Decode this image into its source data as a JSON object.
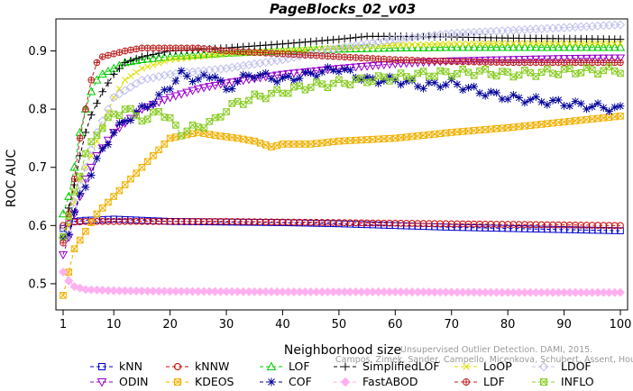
{
  "chart_data": {
    "type": "line",
    "title": "PageBlocks_02_v03",
    "xlabel": "Neighborhood size",
    "ylabel": "ROC AUC",
    "xlim": [
      1,
      100
    ],
    "ylim": [
      0.455,
      0.955
    ],
    "xticks": [
      1,
      10,
      20,
      30,
      40,
      50,
      60,
      70,
      80,
      90,
      100
    ],
    "yticks": [
      0.5,
      0.6,
      0.7,
      0.8,
      0.9
    ],
    "ytick_labels": [
      "0.5",
      "0.6",
      "0.7",
      "0.8",
      "0.9"
    ],
    "grid": false,
    "legend_position": "bottom",
    "watermark": [
      "Unsupervised Outlier Detection. DAMI, 2015.",
      "Campos, Zimek, Sander, Campello, Micenkova, Schubert, Assent, Houle"
    ],
    "series": [
      {
        "name": "kNN",
        "color": "#0000cc",
        "marker": "square",
        "dash": "4,3",
        "points": [
          [
            1,
            0.595
          ],
          [
            2,
            0.603
          ],
          [
            3,
            0.607
          ],
          [
            5,
            0.609
          ],
          [
            8,
            0.61
          ],
          [
            10,
            0.611
          ],
          [
            15,
            0.609
          ],
          [
            20,
            0.607
          ],
          [
            30,
            0.606
          ],
          [
            40,
            0.605
          ],
          [
            50,
            0.603
          ],
          [
            60,
            0.6
          ],
          [
            70,
            0.597
          ],
          [
            80,
            0.595
          ],
          [
            90,
            0.593
          ],
          [
            100,
            0.591
          ]
        ]
      },
      {
        "name": "kNNW",
        "color": "#cc0000",
        "marker": "circle",
        "dash": "4,3",
        "points": [
          [
            1,
            0.6
          ],
          [
            2,
            0.604
          ],
          [
            3,
            0.606
          ],
          [
            5,
            0.607
          ],
          [
            10,
            0.607
          ],
          [
            20,
            0.607
          ],
          [
            30,
            0.607
          ],
          [
            40,
            0.606
          ],
          [
            50,
            0.605
          ],
          [
            60,
            0.604
          ],
          [
            70,
            0.603
          ],
          [
            80,
            0.602
          ],
          [
            90,
            0.601
          ],
          [
            100,
            0.6
          ]
        ]
      },
      {
        "name": "LOF",
        "color": "#00cc00",
        "marker": "triangle",
        "dash": "4,3",
        "points": [
          [
            1,
            0.62
          ],
          [
            2,
            0.65
          ],
          [
            3,
            0.7
          ],
          [
            4,
            0.76
          ],
          [
            5,
            0.8
          ],
          [
            6,
            0.83
          ],
          [
            7,
            0.85
          ],
          [
            8,
            0.86
          ],
          [
            10,
            0.87
          ],
          [
            12,
            0.88
          ],
          [
            15,
            0.885
          ],
          [
            20,
            0.89
          ],
          [
            25,
            0.893
          ],
          [
            30,
            0.896
          ],
          [
            40,
            0.9
          ],
          [
            50,
            0.903
          ],
          [
            60,
            0.905
          ],
          [
            70,
            0.906
          ],
          [
            80,
            0.906
          ],
          [
            90,
            0.906
          ],
          [
            100,
            0.906
          ]
        ]
      },
      {
        "name": "SimplifiedLOF",
        "color": "#000000",
        "marker": "plus",
        "dash": "4,3",
        "points": [
          [
            1,
            0.58
          ],
          [
            2,
            0.63
          ],
          [
            3,
            0.67
          ],
          [
            4,
            0.72
          ],
          [
            5,
            0.76
          ],
          [
            6,
            0.79
          ],
          [
            8,
            0.83
          ],
          [
            10,
            0.86
          ],
          [
            12,
            0.88
          ],
          [
            15,
            0.89
          ],
          [
            20,
            0.9
          ],
          [
            30,
            0.905
          ],
          [
            40,
            0.912
          ],
          [
            50,
            0.92
          ],
          [
            55,
            0.925
          ],
          [
            60,
            0.925
          ],
          [
            70,
            0.924
          ],
          [
            80,
            0.922
          ],
          [
            90,
            0.921
          ],
          [
            100,
            0.92
          ]
        ]
      },
      {
        "name": "LoOP",
        "color": "#dddd00",
        "marker": "x",
        "dash": "4,3",
        "points": [
          [
            1,
            0.58
          ],
          [
            2,
            0.6
          ],
          [
            3,
            0.64
          ],
          [
            4,
            0.68
          ],
          [
            6,
            0.72
          ],
          [
            8,
            0.77
          ],
          [
            10,
            0.82
          ],
          [
            12,
            0.85
          ],
          [
            15,
            0.87
          ],
          [
            20,
            0.885
          ],
          [
            25,
            0.89
          ],
          [
            30,
            0.895
          ],
          [
            40,
            0.9
          ],
          [
            50,
            0.905
          ],
          [
            60,
            0.91
          ],
          [
            70,
            0.912
          ],
          [
            80,
            0.913
          ],
          [
            90,
            0.913
          ],
          [
            100,
            0.913
          ]
        ]
      },
      {
        "name": "LDOF",
        "color": "#c0c0ee",
        "marker": "diamond",
        "dash": "4,3",
        "points": [
          [
            1,
            0.59
          ],
          [
            2,
            0.61
          ],
          [
            3,
            0.64
          ],
          [
            5,
            0.7
          ],
          [
            7,
            0.76
          ],
          [
            10,
            0.82
          ],
          [
            15,
            0.85
          ],
          [
            20,
            0.86
          ],
          [
            30,
            0.87
          ],
          [
            40,
            0.885
          ],
          [
            50,
            0.905
          ],
          [
            60,
            0.92
          ],
          [
            70,
            0.93
          ],
          [
            80,
            0.935
          ],
          [
            90,
            0.94
          ],
          [
            100,
            0.945
          ]
        ]
      },
      {
        "name": "ODIN",
        "color": "#9900cc",
        "marker": "triangle-down",
        "dash": "4,3",
        "points": [
          [
            1,
            0.55
          ],
          [
            2,
            0.58
          ],
          [
            3,
            0.62
          ],
          [
            5,
            0.68
          ],
          [
            7,
            0.72
          ],
          [
            10,
            0.76
          ],
          [
            15,
            0.8
          ],
          [
            20,
            0.82
          ],
          [
            25,
            0.835
          ],
          [
            30,
            0.845
          ],
          [
            40,
            0.86
          ],
          [
            50,
            0.87
          ],
          [
            60,
            0.878
          ],
          [
            70,
            0.883
          ],
          [
            80,
            0.885
          ],
          [
            90,
            0.887
          ],
          [
            100,
            0.888
          ]
        ]
      },
      {
        "name": "KDEOS",
        "color": "#f0b000",
        "marker": "box-x",
        "dash": "4,3",
        "points": [
          [
            1,
            0.48
          ],
          [
            2,
            0.52
          ],
          [
            3,
            0.56
          ],
          [
            5,
            0.59
          ],
          [
            7,
            0.62
          ],
          [
            10,
            0.65
          ],
          [
            13,
            0.68
          ],
          [
            15,
            0.7
          ],
          [
            18,
            0.73
          ],
          [
            20,
            0.75
          ],
          [
            25,
            0.76
          ],
          [
            28,
            0.755
          ],
          [
            32,
            0.75
          ],
          [
            35,
            0.745
          ],
          [
            38,
            0.735
          ],
          [
            40,
            0.74
          ],
          [
            45,
            0.74
          ],
          [
            50,
            0.745
          ],
          [
            60,
            0.75
          ],
          [
            70,
            0.76
          ],
          [
            80,
            0.768
          ],
          [
            90,
            0.778
          ],
          [
            100,
            0.788
          ]
        ]
      },
      {
        "name": "COF",
        "color": "#000099",
        "marker": "asterisk",
        "dash": "4,3",
        "points": [
          [
            1,
            0.58
          ],
          [
            2,
            0.59
          ],
          [
            3,
            0.62
          ],
          [
            4,
            0.65
          ],
          [
            6,
            0.69
          ],
          [
            8,
            0.73
          ],
          [
            10,
            0.76
          ],
          [
            12,
            0.78
          ],
          [
            15,
            0.8
          ],
          [
            18,
            0.82
          ],
          [
            20,
            0.84
          ],
          [
            22,
            0.86
          ],
          [
            25,
            0.85
          ],
          [
            28,
            0.86
          ],
          [
            30,
            0.83
          ],
          [
            32,
            0.85
          ],
          [
            35,
            0.86
          ],
          [
            40,
            0.85
          ],
          [
            45,
            0.86
          ],
          [
            50,
            0.87
          ],
          [
            55,
            0.85
          ],
          [
            60,
            0.85
          ],
          [
            65,
            0.84
          ],
          [
            70,
            0.845
          ],
          [
            75,
            0.83
          ],
          [
            80,
            0.82
          ],
          [
            85,
            0.815
          ],
          [
            90,
            0.81
          ],
          [
            95,
            0.805
          ],
          [
            100,
            0.8
          ]
        ]
      },
      {
        "name": "FastABOD",
        "color": "#ffb0f0",
        "marker": "diamond-filled",
        "dash": "4,3",
        "points": [
          [
            1,
            0.52
          ],
          [
            2,
            0.505
          ],
          [
            3,
            0.495
          ],
          [
            5,
            0.49
          ],
          [
            10,
            0.488
          ],
          [
            20,
            0.487
          ],
          [
            40,
            0.486
          ],
          [
            60,
            0.486
          ],
          [
            80,
            0.485
          ],
          [
            100,
            0.485
          ]
        ]
      },
      {
        "name": "LDF",
        "color": "#bb2222",
        "marker": "circle-plus",
        "dash": "4,3",
        "points": [
          [
            1,
            0.57
          ],
          [
            2,
            0.62
          ],
          [
            3,
            0.68
          ],
          [
            4,
            0.75
          ],
          [
            5,
            0.8
          ],
          [
            6,
            0.85
          ],
          [
            7,
            0.88
          ],
          [
            8,
            0.89
          ],
          [
            10,
            0.895
          ],
          [
            12,
            0.9
          ],
          [
            15,
            0.905
          ],
          [
            20,
            0.905
          ],
          [
            25,
            0.905
          ],
          [
            30,
            0.9
          ],
          [
            40,
            0.895
          ],
          [
            50,
            0.89
          ],
          [
            60,
            0.885
          ],
          [
            70,
            0.882
          ],
          [
            80,
            0.88
          ],
          [
            90,
            0.88
          ],
          [
            100,
            0.88
          ]
        ]
      },
      {
        "name": "INFLO",
        "color": "#88cc22",
        "marker": "box-x",
        "dash": "4,3",
        "points": [
          [
            1,
            0.58
          ],
          [
            2,
            0.61
          ],
          [
            3,
            0.66
          ],
          [
            5,
            0.72
          ],
          [
            7,
            0.76
          ],
          [
            10,
            0.79
          ],
          [
            12,
            0.8
          ],
          [
            14,
            0.79
          ],
          [
            16,
            0.78
          ],
          [
            18,
            0.8
          ],
          [
            20,
            0.78
          ],
          [
            22,
            0.76
          ],
          [
            25,
            0.77
          ],
          [
            28,
            0.78
          ],
          [
            30,
            0.8
          ],
          [
            32,
            0.81
          ],
          [
            35,
            0.82
          ],
          [
            40,
            0.83
          ],
          [
            45,
            0.84
          ],
          [
            50,
            0.845
          ],
          [
            55,
            0.85
          ],
          [
            60,
            0.855
          ],
          [
            65,
            0.86
          ],
          [
            70,
            0.862
          ],
          [
            75,
            0.864
          ],
          [
            80,
            0.86
          ],
          [
            85,
            0.862
          ],
          [
            90,
            0.865
          ],
          [
            95,
            0.866
          ],
          [
            100,
            0.867
          ]
        ]
      }
    ]
  }
}
